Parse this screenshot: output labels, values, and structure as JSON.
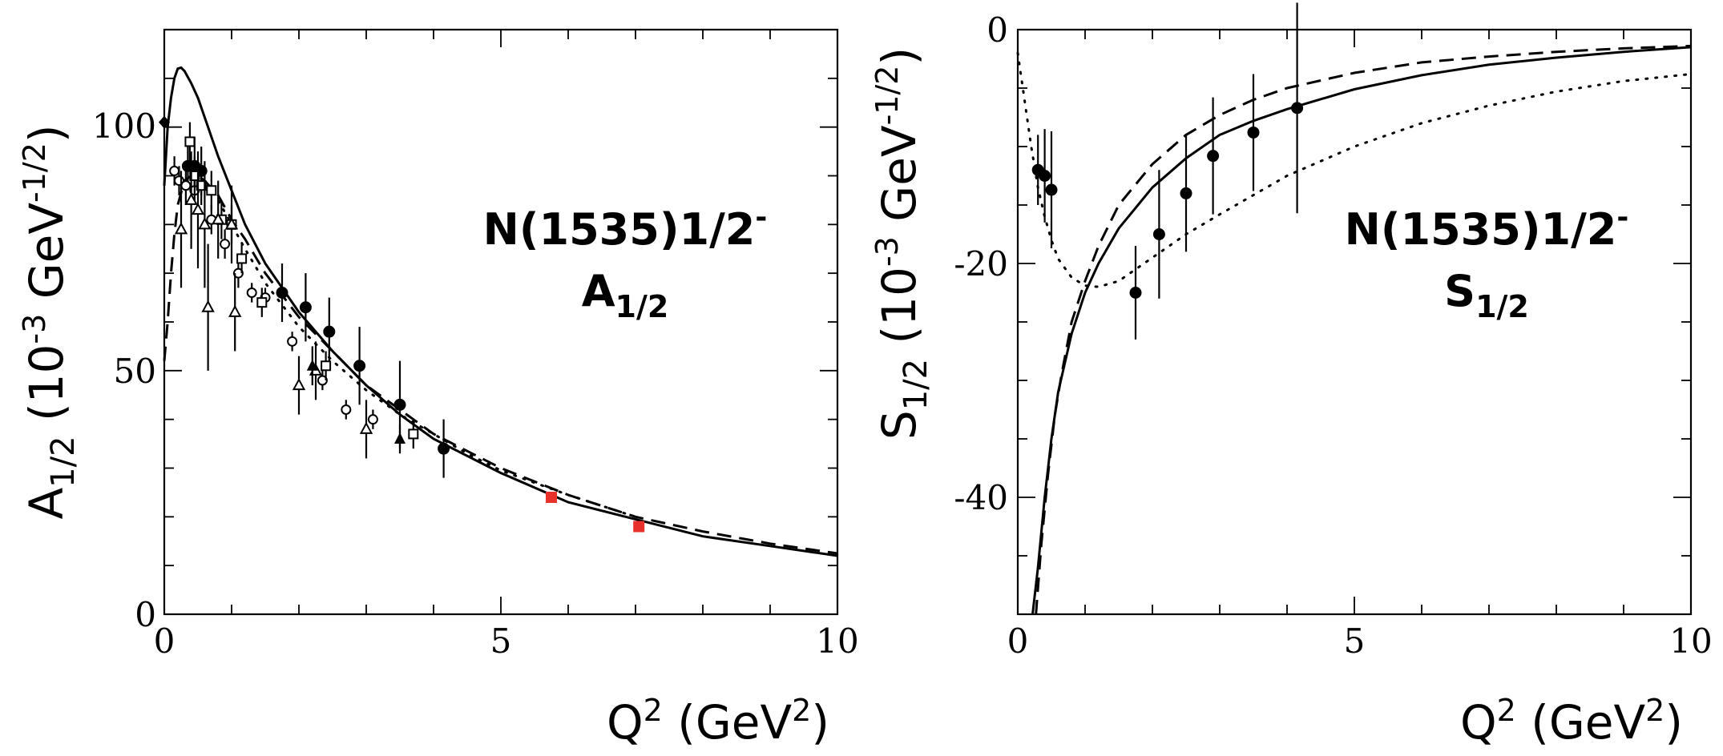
{
  "chart_data": [
    {
      "type": "scatter",
      "panel": "left",
      "xlabel_base": "Q",
      "xlabel_sup": "2",
      "xlabel_unit": " (GeV",
      "xlabel_unit_sup": "2",
      "xlabel_close": ")",
      "ylabel_main": "A",
      "ylabel_sub": "1/2",
      "ylabel_unit": " (10",
      "ylabel_exp": "-3",
      "ylabel_gev": " GeV",
      "ylabel_gev_exp": "-1/2",
      "ylabel_close": ")",
      "annotation_line1": "N(1535)1/2",
      "annotation_line1_sup": "-",
      "annotation_line2": "A",
      "annotation_line2_sub": "1/2",
      "xlim": [
        0,
        10
      ],
      "ylim": [
        0,
        120
      ],
      "x_ticks": [
        0,
        5,
        10
      ],
      "x_tick_labels": [
        "0",
        "5",
        "10"
      ],
      "y_ticks": [
        0,
        50,
        100
      ],
      "y_tick_labels": [
        "0",
        "50",
        "100"
      ],
      "curves": [
        {
          "name": "solid",
          "style": "solid",
          "x": [
            0,
            0.05,
            0.1,
            0.15,
            0.2,
            0.25,
            0.3,
            0.4,
            0.5,
            0.6,
            0.8,
            1.0,
            1.2,
            1.5,
            2.0,
            2.5,
            3.0,
            3.5,
            4.0,
            5.0,
            6.0,
            7.0,
            8.0,
            9.0,
            10.0
          ],
          "y": [
            88,
            100,
            106,
            110,
            112,
            112.2,
            111.5,
            109,
            106,
            102,
            94,
            87,
            80,
            72,
            62,
            54,
            47,
            41,
            36,
            29,
            23,
            19.5,
            16,
            14,
            12
          ]
        },
        {
          "name": "dashed",
          "style": "dashed",
          "x": [
            0,
            0.05,
            0.1,
            0.15,
            0.2,
            0.3,
            0.4,
            0.5,
            0.6,
            0.8,
            1.0,
            1.2,
            1.5,
            2.0,
            2.5,
            3.0,
            3.5,
            4.0,
            5.0,
            6.0,
            7.0,
            8.0,
            9.0,
            10.0
          ],
          "y": [
            52,
            60,
            70,
            78,
            84,
            89,
            90,
            90,
            89,
            86,
            81,
            77,
            70,
            61,
            54,
            47,
            42,
            37,
            30,
            24.5,
            20,
            17,
            14.5,
            12.5
          ]
        },
        {
          "name": "dotted",
          "style": "dotted",
          "x": [
            0.3,
            0.4,
            0.5,
            0.6,
            0.8,
            1.0,
            1.2,
            1.5,
            2.0,
            2.5,
            3.0,
            3.5,
            4.0,
            4.5,
            5.0,
            6.0,
            7.0
          ],
          "y": [
            89,
            90,
            90,
            89,
            85,
            80,
            75,
            68,
            59,
            52,
            46,
            41,
            37,
            33,
            29.5,
            24.5,
            20
          ]
        }
      ],
      "series": [
        {
          "name": "filled-circles",
          "marker": "filled-circle",
          "x": [
            0.35,
            0.45,
            0.55,
            1.75,
            2.1,
            2.45,
            2.9,
            3.5,
            4.15
          ],
          "y": [
            92,
            92,
            91,
            66,
            63,
            58,
            51,
            43,
            34
          ],
          "err": [
            5,
            6,
            5,
            6,
            7,
            7,
            8,
            9,
            6
          ]
        },
        {
          "name": "filled-diamond",
          "marker": "filled-diamond",
          "x": [
            0.0
          ],
          "y": [
            101
          ],
          "err": [
            0
          ]
        },
        {
          "name": "open-circles",
          "marker": "open-circle",
          "x": [
            0.15,
            0.22,
            0.32,
            0.45,
            0.7,
            0.9,
            1.1,
            1.3,
            1.5,
            1.9,
            2.35,
            2.7,
            3.1
          ],
          "y": [
            91,
            89,
            88,
            87,
            81,
            76,
            70,
            66,
            65,
            56,
            48,
            42,
            40
          ],
          "err": [
            3,
            3,
            4,
            3,
            3,
            3,
            3,
            2,
            2,
            2,
            2,
            2,
            2
          ]
        },
        {
          "name": "open-squares",
          "marker": "open-square",
          "x": [
            0.38,
            0.45,
            0.55,
            0.7,
            0.85,
            1.0,
            1.15,
            1.45,
            2.4,
            3.7
          ],
          "y": [
            97,
            90,
            88,
            87,
            81,
            80,
            73,
            64,
            51,
            37
          ],
          "err": [
            4,
            4,
            4,
            4,
            4,
            4,
            3,
            3,
            3,
            3
          ]
        },
        {
          "name": "open-triangles",
          "marker": "open-triangle",
          "x": [
            0.25,
            0.4,
            0.5,
            0.6,
            0.65,
            0.8,
            1.0,
            1.05,
            2.0,
            2.25,
            3.0
          ],
          "y": [
            79,
            85,
            83,
            80,
            63,
            81,
            80,
            62,
            47,
            50,
            38
          ],
          "err": [
            12,
            10,
            12,
            13,
            13,
            8,
            8,
            8,
            6,
            6,
            6
          ]
        },
        {
          "name": "filled-triangles",
          "marker": "filled-triangle",
          "x": [
            2.2,
            3.5
          ],
          "y": [
            51,
            36
          ],
          "err": [
            4,
            3
          ]
        },
        {
          "name": "red-squares",
          "marker": "red-square",
          "color": "#e8312a",
          "x": [
            5.75,
            7.05
          ],
          "y": [
            24,
            18
          ],
          "err": [
            0,
            0
          ]
        }
      ]
    },
    {
      "type": "scatter",
      "panel": "right",
      "xlabel_base": "Q",
      "xlabel_sup": "2",
      "xlabel_unit": " (GeV",
      "xlabel_unit_sup": "2",
      "xlabel_close": ")",
      "ylabel_main": "S",
      "ylabel_sub": "1/2",
      "ylabel_unit": " (10",
      "ylabel_exp": "-3",
      "ylabel_gev": " GeV",
      "ylabel_gev_exp": "-1/2",
      "ylabel_close": ")",
      "annotation_line1": "N(1535)1/2",
      "annotation_line1_sup": "-",
      "annotation_line2": "S",
      "annotation_line2_sub": "1/2",
      "xlim": [
        0,
        10
      ],
      "ylim": [
        -50,
        0
      ],
      "x_ticks": [
        0,
        5,
        10
      ],
      "x_tick_labels": [
        "0",
        "5",
        "10"
      ],
      "y_ticks": [
        0,
        -20,
        -40
      ],
      "y_tick_labels": [
        "0",
        "-20",
        "-40"
      ],
      "curves": [
        {
          "name": "solid",
          "style": "solid",
          "x": [
            0.22,
            0.3,
            0.4,
            0.5,
            0.6,
            0.8,
            1.0,
            1.2,
            1.5,
            2.0,
            2.5,
            3.0,
            3.5,
            4.0,
            5.0,
            6.0,
            7.0,
            8.0,
            9.0,
            10.0
          ],
          "y": [
            -50,
            -46,
            -40,
            -35,
            -31,
            -26,
            -22.5,
            -20,
            -17,
            -13.5,
            -11,
            -9,
            -7.8,
            -6.8,
            -5.1,
            -3.9,
            -3.0,
            -2.4,
            -1.9,
            -1.5
          ]
        },
        {
          "name": "dashed",
          "style": "dashed",
          "x": [
            0.27,
            0.35,
            0.45,
            0.55,
            0.65,
            0.8,
            1.0,
            1.2,
            1.5,
            2.0,
            2.5,
            3.0,
            3.5,
            4.0,
            5.0,
            6.0,
            7.0,
            8.0,
            9.0,
            10.0
          ],
          "y": [
            -50,
            -44,
            -38,
            -33,
            -29.5,
            -25,
            -21.5,
            -18.5,
            -15,
            -11.5,
            -9,
            -7.3,
            -6,
            -5,
            -3.7,
            -2.8,
            -2.3,
            -1.9,
            -1.6,
            -1.4
          ]
        },
        {
          "name": "dotted",
          "style": "dotted",
          "x": [
            0.0,
            0.1,
            0.2,
            0.3,
            0.4,
            0.5,
            0.6,
            0.8,
            1.0,
            1.2,
            1.5,
            2.0,
            2.5,
            3.0,
            4.0,
            5.0,
            6.0,
            7.0,
            8.0,
            9.0,
            10.0
          ],
          "y": [
            -2,
            -6,
            -10,
            -13.5,
            -16,
            -18,
            -19.6,
            -21.2,
            -21.9,
            -22,
            -21.5,
            -19.5,
            -17.5,
            -15.8,
            -12.5,
            -10,
            -8,
            -6.5,
            -5.3,
            -4.4,
            -3.8
          ]
        }
      ],
      "series": [
        {
          "name": "filled-circles",
          "marker": "filled-circle",
          "x": [
            0.3,
            0.4,
            0.5,
            1.75,
            2.1,
            2.5,
            2.9,
            3.5,
            4.15
          ],
          "y": [
            -12,
            -12.5,
            -13.7,
            -22.5,
            -17.5,
            -14,
            -10.8,
            -8.8,
            -6.7
          ],
          "err": [
            3,
            4,
            5,
            4,
            5.5,
            5,
            5,
            5,
            9
          ]
        }
      ]
    }
  ]
}
